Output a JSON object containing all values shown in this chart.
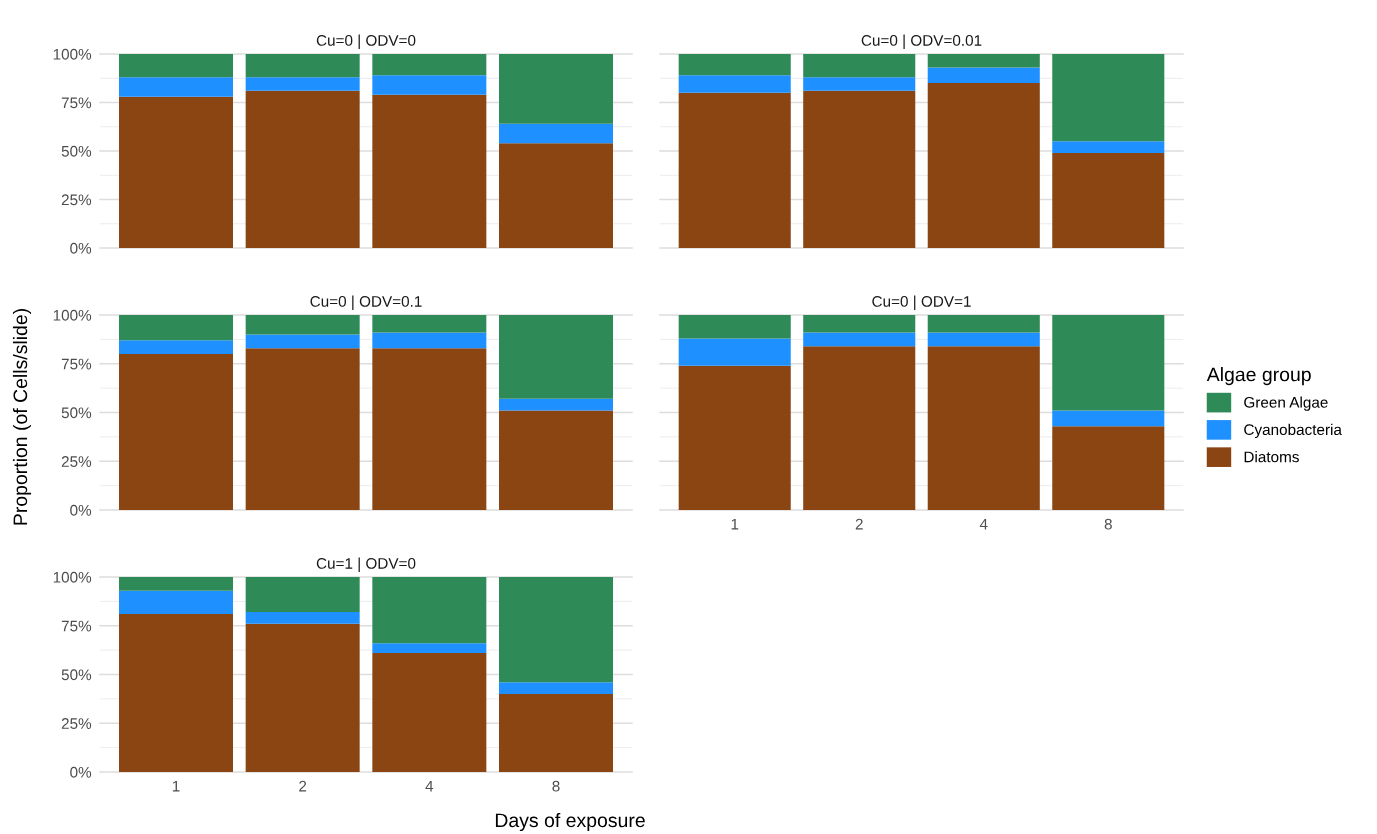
{
  "chart_data": [
    {
      "type": "bar",
      "title": "Cu=0 | ODV=0",
      "ylabel": "Proportion (of Cells/slide)",
      "categories": [
        "1",
        "2",
        "4",
        "8"
      ],
      "stacked": true,
      "ylim": [
        0,
        100
      ],
      "yticks": [
        {
          "value": 0,
          "label": "0%"
        },
        {
          "value": 25,
          "label": "25%"
        },
        {
          "value": 50,
          "label": "50%"
        },
        {
          "value": 75,
          "label": "75%"
        },
        {
          "value": 100,
          "label": "100%"
        }
      ],
      "grid": "y",
      "tick_labels": "y",
      "legend": "right",
      "legend_title": "Algae group",
      "series": [
        {
          "name": "Diatoms",
          "color": "#8b4513",
          "values": [
            78,
            81,
            79,
            54
          ]
        },
        {
          "name": "Cyanobacteria",
          "color": "#1e90ff",
          "values": [
            10,
            7,
            10,
            10
          ]
        },
        {
          "name": "Green Algae",
          "color": "#2e8b57",
          "values": [
            12,
            12,
            11,
            36
          ]
        }
      ]
    },
    {
      "type": "bar",
      "title": "Cu=0 | ODV=0.01",
      "categories": [
        "1",
        "2",
        "4",
        "8"
      ],
      "stacked": true,
      "ylim": [
        0,
        100
      ],
      "yticks": [
        {
          "value": 0,
          "label": null
        },
        {
          "value": 25,
          "label": null
        },
        {
          "value": 50,
          "label": null
        },
        {
          "value": 75,
          "label": null
        },
        {
          "value": 100,
          "label": null
        }
      ],
      "grid": "y",
      "tick_labels": false,
      "series": [
        {
          "color": "#8b4513",
          "values": [
            80,
            81,
            85,
            49
          ]
        },
        {
          "color": "#1e90ff",
          "values": [
            9,
            7,
            8,
            6
          ]
        },
        {
          "color": "#2e8b57",
          "values": [
            11,
            12,
            7,
            45
          ]
        }
      ]
    },
    {
      "type": "bar",
      "title": "Cu=0 | ODV=0.1",
      "categories": [
        "1",
        "2",
        "4",
        "8"
      ],
      "stacked": true,
      "ylim": [
        0,
        100
      ],
      "yticks": [
        {
          "value": 0,
          "label": "0%"
        },
        {
          "value": 25,
          "label": "25%"
        },
        {
          "value": 50,
          "label": "50%"
        },
        {
          "value": 75,
          "label": "75%"
        },
        {
          "value": 100,
          "label": "100%"
        }
      ],
      "grid": "y",
      "tick_labels": "y",
      "series": [
        {
          "color": "#8b4513",
          "values": [
            80,
            83,
            83,
            51
          ]
        },
        {
          "color": "#1e90ff",
          "values": [
            7,
            7,
            8,
            6
          ]
        },
        {
          "color": "#2e8b57",
          "values": [
            13,
            10,
            9,
            43
          ]
        }
      ]
    },
    {
      "type": "bar",
      "title": "Cu=0 | ODV=1",
      "categories": [
        "1",
        "2",
        "4",
        "8"
      ],
      "stacked": true,
      "ylim": [
        0,
        100
      ],
      "yticks": [
        {
          "value": 0,
          "label": null
        },
        {
          "value": 25,
          "label": null
        },
        {
          "value": 50,
          "label": null
        },
        {
          "value": 75,
          "label": null
        },
        {
          "value": 100,
          "label": null
        }
      ],
      "grid": "y",
      "tick_labels": "x",
      "series": [
        {
          "color": "#8b4513",
          "values": [
            74,
            84,
            84,
            43
          ]
        },
        {
          "color": "#1e90ff",
          "values": [
            14,
            7,
            7,
            8
          ]
        },
        {
          "color": "#2e8b57",
          "values": [
            12,
            9,
            9,
            49
          ]
        }
      ]
    },
    {
      "type": "bar",
      "title": "Cu=1 | ODV=0",
      "xlabel": "Days of exposure",
      "categories": [
        "1",
        "2",
        "4",
        "8"
      ],
      "stacked": true,
      "ylim": [
        0,
        100
      ],
      "yticks": [
        {
          "value": 0,
          "label": "0%"
        },
        {
          "value": 25,
          "label": "25%"
        },
        {
          "value": 50,
          "label": "50%"
        },
        {
          "value": 75,
          "label": "75%"
        },
        {
          "value": 100,
          "label": "100%"
        }
      ],
      "grid": "y",
      "series": [
        {
          "color": "#8b4513",
          "values": [
            81,
            76,
            61,
            40
          ]
        },
        {
          "color": "#1e90ff",
          "values": [
            12,
            6,
            5,
            6
          ]
        },
        {
          "color": "#2e8b57",
          "values": [
            7,
            18,
            34,
            54
          ]
        }
      ]
    }
  ]
}
